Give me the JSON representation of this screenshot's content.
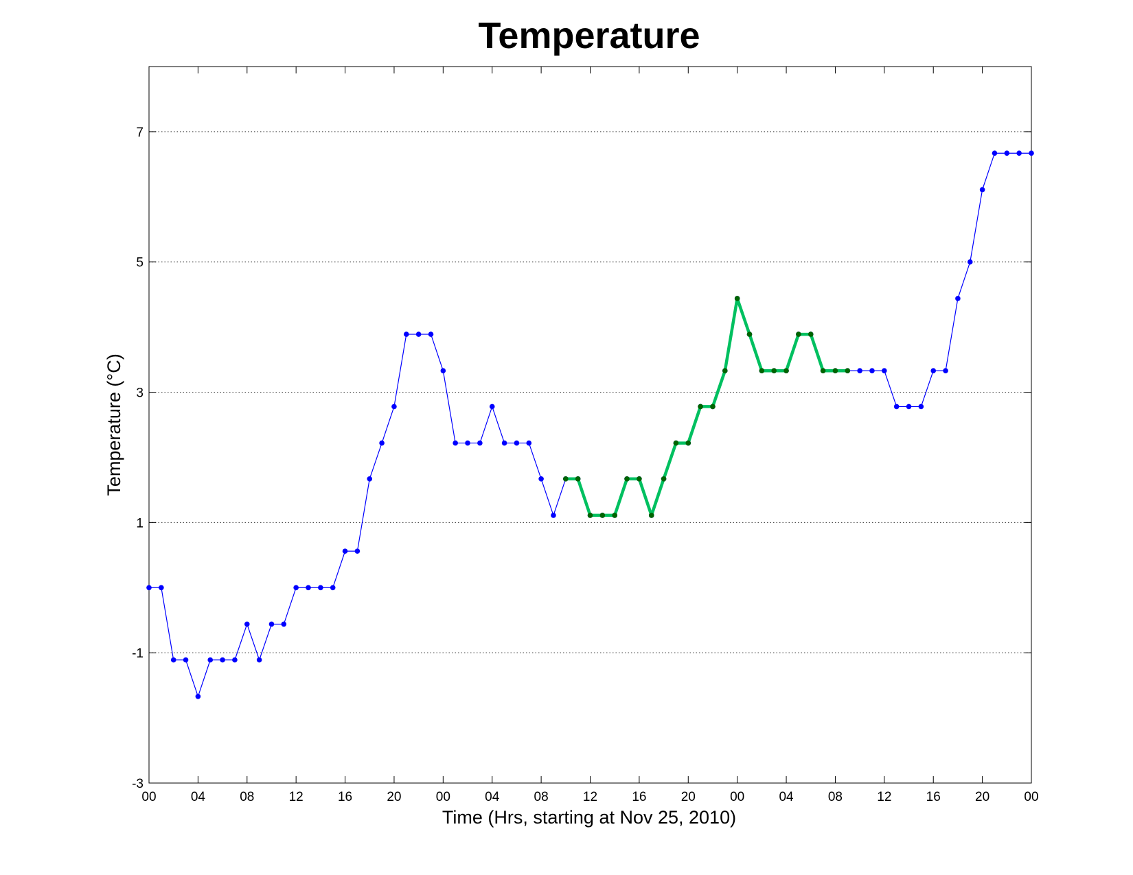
{
  "chart_data": {
    "type": "line",
    "title": "Temperature",
    "x_label": "Time (Hrs, starting at Nov 25, 2010)",
    "y_label": "Temperature (°C)",
    "x": [
      0,
      1,
      2,
      3,
      4,
      5,
      6,
      7,
      8,
      9,
      10,
      11,
      12,
      13,
      14,
      15,
      16,
      17,
      18,
      19,
      20,
      21,
      22,
      23,
      24,
      25,
      26,
      27,
      28,
      29,
      30,
      31,
      32,
      33,
      34,
      35,
      36,
      37,
      38,
      39,
      40,
      41,
      42,
      43,
      44,
      45,
      46,
      47,
      48,
      49,
      50,
      51,
      52,
      53,
      54,
      55,
      56,
      57,
      58,
      59,
      60,
      61,
      62,
      63,
      64,
      65,
      66,
      67,
      68,
      69,
      70,
      71,
      72
    ],
    "series": [
      {
        "color": "#0000ff",
        "marker_color": "#0000ff",
        "line_width": 1.2,
        "values": [
          0,
          0,
          -1.11,
          -1.11,
          -1.67,
          -1.11,
          -1.11,
          -1.11,
          -0.56,
          -1.11,
          -0.56,
          -0.56,
          0,
          0,
          0,
          0,
          0.56,
          0.56,
          1.67,
          2.22,
          2.78,
          3.89,
          3.89,
          3.89,
          3.33,
          2.22,
          2.22,
          2.22,
          2.78,
          2.22,
          2.22,
          2.22,
          1.67,
          1.11,
          1.67,
          1.67,
          1.11,
          1.11,
          1.11,
          1.67,
          1.67,
          1.11,
          1.67,
          2.22,
          2.22,
          2.78,
          2.78,
          3.33,
          4.44,
          3.89,
          3.33,
          3.33,
          3.33,
          3.89,
          3.89,
          3.33,
          3.33,
          3.33,
          3.33,
          3.33,
          3.33,
          2.78,
          2.78,
          2.78,
          3.33,
          3.33,
          4.44,
          5,
          6.11,
          6.67,
          6.67,
          6.67,
          6.67
        ]
      },
      {
        "color": "#00c060",
        "marker_color": "#006400",
        "line_width": 4.5,
        "values": [
          null,
          null,
          null,
          null,
          null,
          null,
          null,
          null,
          null,
          null,
          null,
          null,
          null,
          null,
          null,
          null,
          null,
          null,
          null,
          null,
          null,
          null,
          null,
          null,
          null,
          null,
          null,
          null,
          null,
          null,
          null,
          null,
          null,
          null,
          1.67,
          1.67,
          1.11,
          1.11,
          1.11,
          1.67,
          1.67,
          1.11,
          1.67,
          2.22,
          2.22,
          2.78,
          2.78,
          3.33,
          4.44,
          3.89,
          3.33,
          3.33,
          3.33,
          3.89,
          3.89,
          3.33,
          3.33,
          3.33,
          null,
          null,
          null,
          null,
          null,
          null,
          null,
          null,
          null,
          null,
          null,
          null,
          null,
          null,
          null
        ]
      }
    ],
    "xlim": [
      0,
      72
    ],
    "xticks": [
      {
        "value": 0,
        "label": "00"
      },
      {
        "value": 4,
        "label": "04"
      },
      {
        "value": 8,
        "label": "08"
      },
      {
        "value": 12,
        "label": "12"
      },
      {
        "value": 16,
        "label": "16"
      },
      {
        "value": 20,
        "label": "20"
      },
      {
        "value": 24,
        "label": "00"
      },
      {
        "value": 28,
        "label": "04"
      },
      {
        "value": 32,
        "label": "08"
      },
      {
        "value": 36,
        "label": "12"
      },
      {
        "value": 40,
        "label": "16"
      },
      {
        "value": 44,
        "label": "20"
      },
      {
        "value": 48,
        "label": "00"
      },
      {
        "value": 52,
        "label": "04"
      },
      {
        "value": 56,
        "label": "08"
      },
      {
        "value": 60,
        "label": "12"
      },
      {
        "value": 64,
        "label": "16"
      },
      {
        "value": 68,
        "label": "20"
      },
      {
        "value": 72,
        "label": "00"
      }
    ],
    "ylim": [
      -3,
      8
    ],
    "yticks": [
      -3,
      -1,
      1,
      3,
      5,
      7
    ],
    "grid": true
  }
}
